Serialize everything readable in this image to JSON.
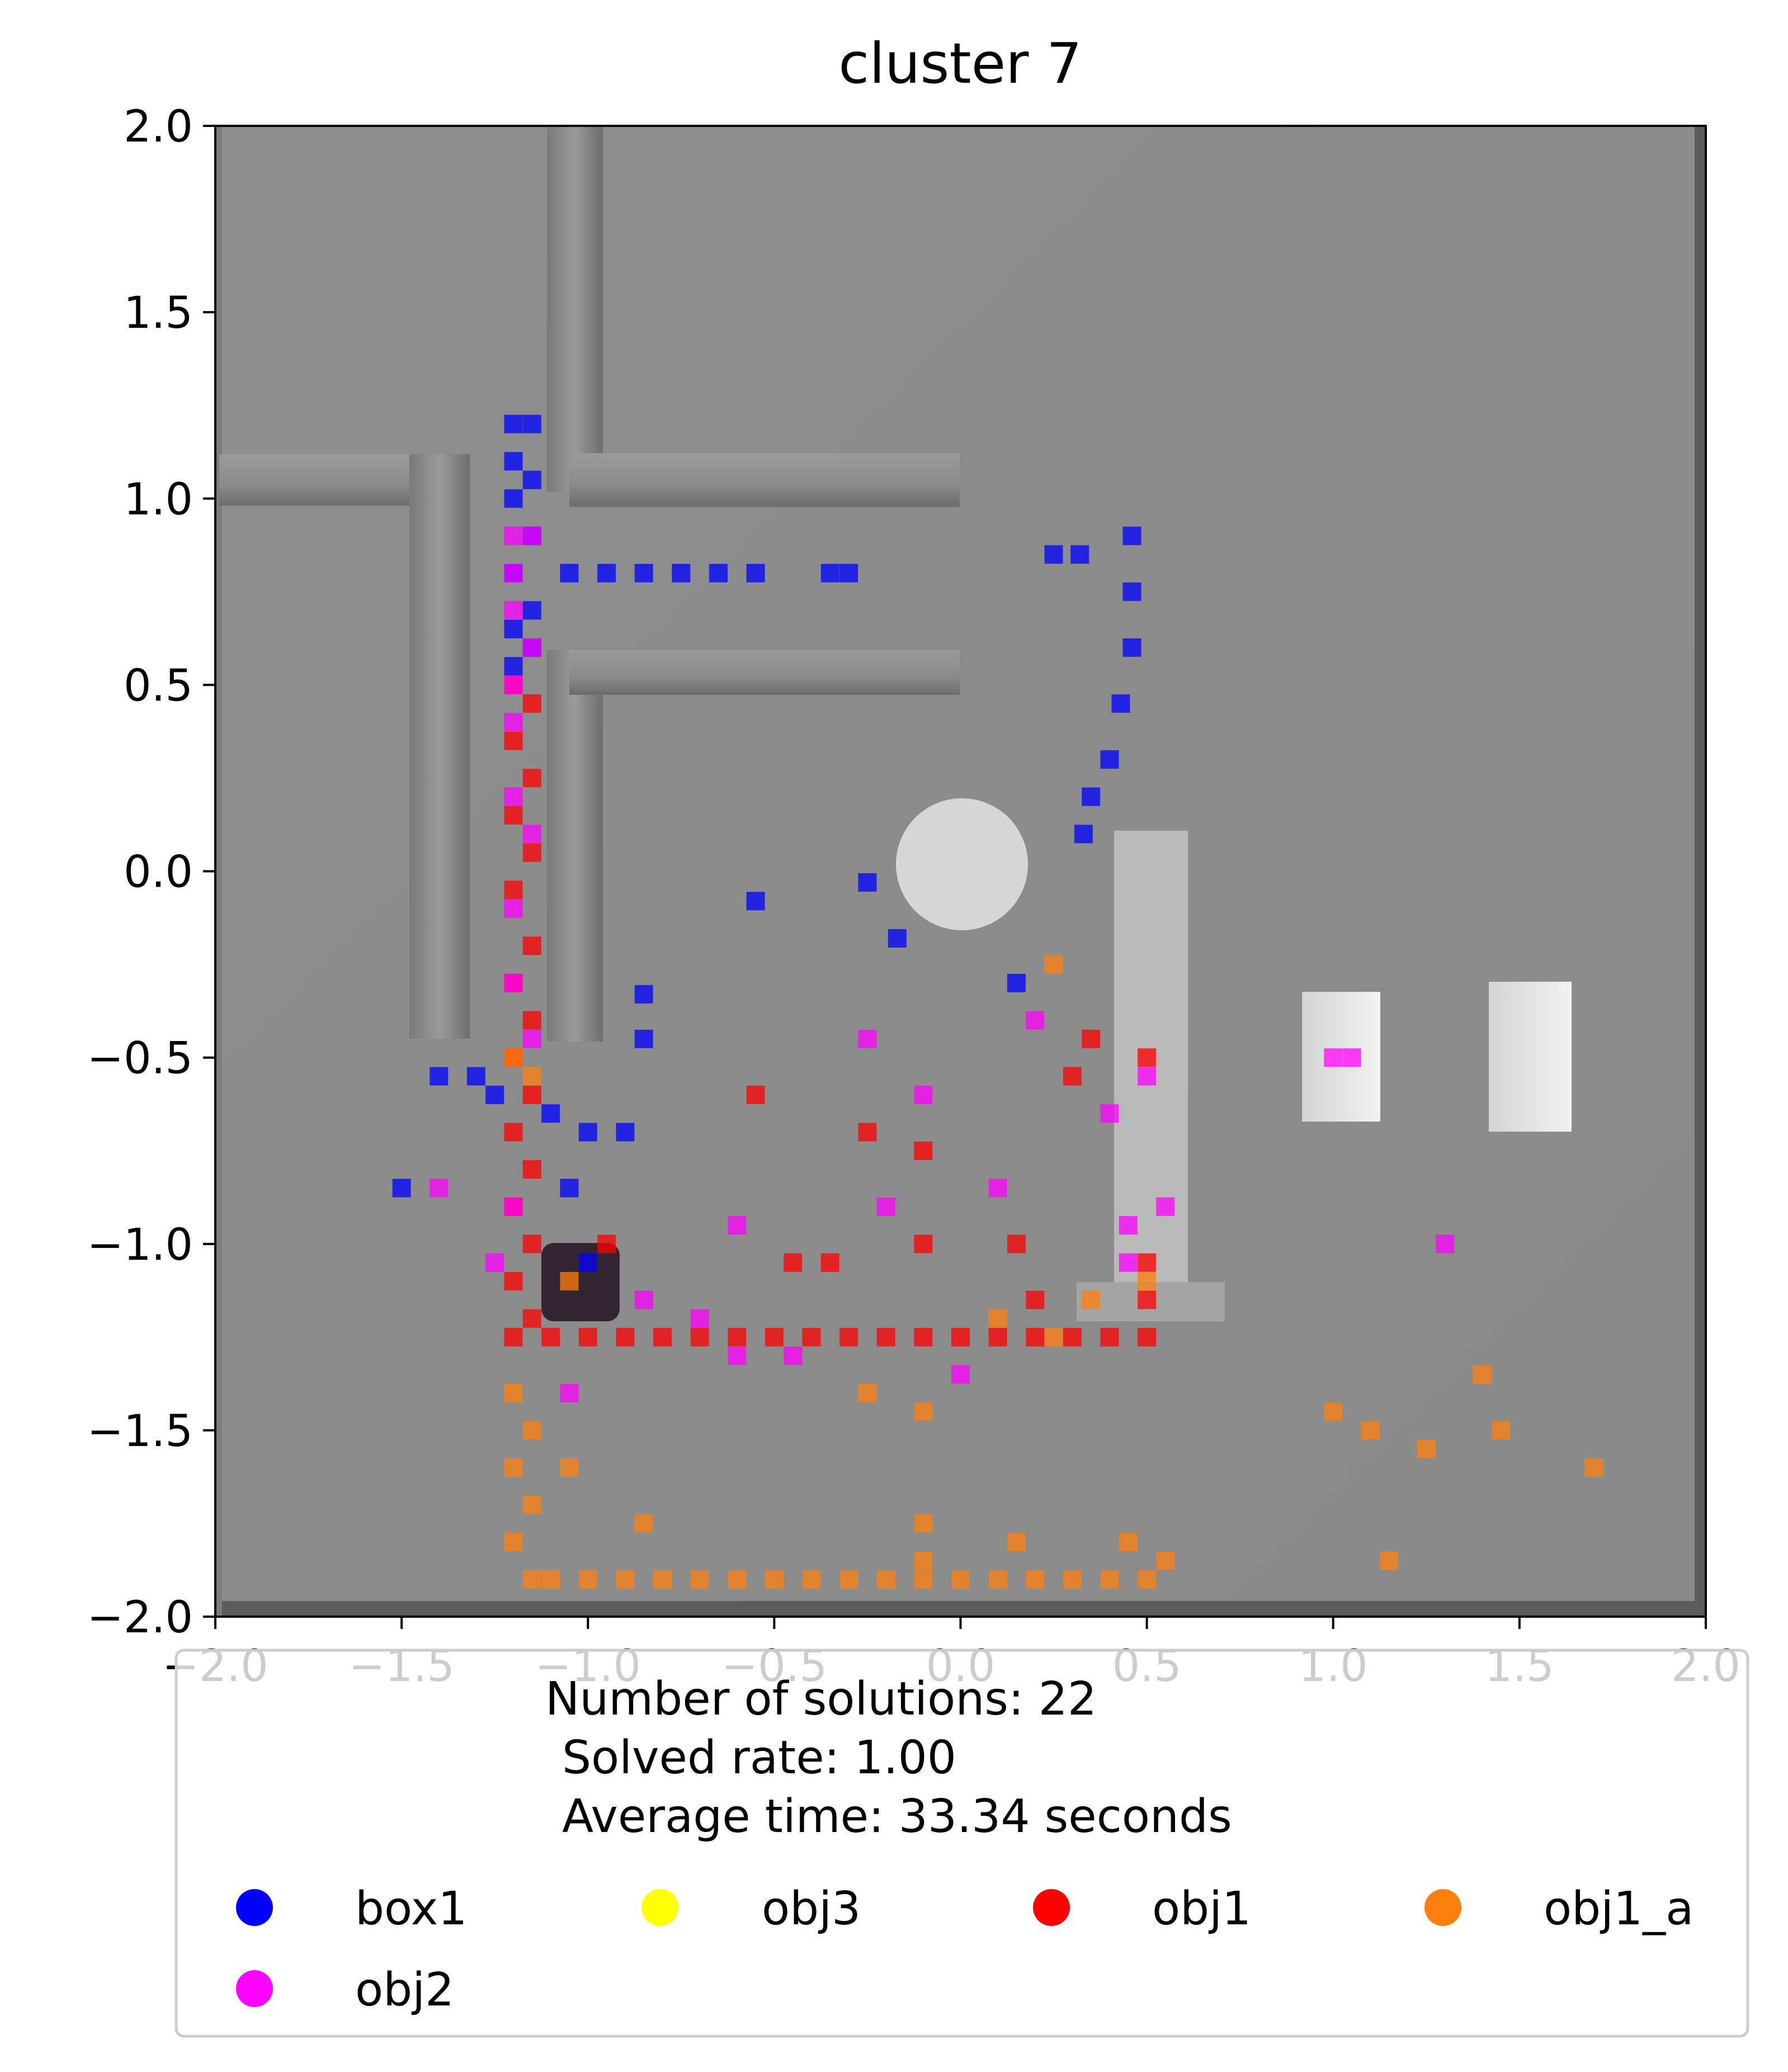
{
  "chart_data": {
    "type": "scatter",
    "title": "cluster 7",
    "xlabel": "",
    "ylabel": "",
    "xlim": [
      -2.0,
      2.0
    ],
    "ylim": [
      -2.0,
      2.0
    ],
    "x_ticks": [
      "−2.0",
      "−1.5",
      "−1.0",
      "−0.5",
      "0.0",
      "0.5",
      "1.0",
      "1.5",
      "2.0"
    ],
    "x_tick_values": [
      -2.0,
      -1.5,
      -1.0,
      -0.5,
      0.0,
      0.5,
      1.0,
      1.5,
      2.0
    ],
    "y_ticks": [
      "2.0",
      "1.5",
      "1.0",
      "0.5",
      "0.0",
      "−0.5",
      "−1.0",
      "−1.5",
      "−2.0"
    ],
    "y_tick_values": [
      2.0,
      1.5,
      1.0,
      0.5,
      0.0,
      -0.5,
      -1.0,
      -1.5,
      -2.0
    ],
    "grid": false,
    "background": "top-down render of environment with walls and obstacles",
    "legend": {
      "placement": "below",
      "text_lines": [
        "Number of solutions: 22",
        "Solved rate: 1.00",
        "Average time: 33.34 seconds"
      ],
      "entries": [
        {
          "name": "box1",
          "color": "#0000ff"
        },
        {
          "name": "obj3",
          "color": "#ffff00"
        },
        {
          "name": "obj1",
          "color": "#ff0000"
        },
        {
          "name": "obj1_a",
          "color": "#ff7f0e"
        },
        {
          "name": "obj2",
          "color": "#ff00ff"
        }
      ]
    },
    "series": [
      {
        "name": "box1",
        "color": "#0000ff",
        "points": [
          [
            -1.2,
            1.2
          ],
          [
            -1.15,
            1.2
          ],
          [
            -1.2,
            1.1
          ],
          [
            -1.15,
            1.05
          ],
          [
            -1.2,
            1.0
          ],
          [
            -1.15,
            0.9
          ],
          [
            -1.2,
            0.8
          ],
          [
            -1.15,
            0.7
          ],
          [
            -1.2,
            0.65
          ],
          [
            -1.15,
            0.6
          ],
          [
            -1.2,
            0.55
          ],
          [
            -1.05,
            0.8
          ],
          [
            -0.95,
            0.8
          ],
          [
            -0.85,
            0.8
          ],
          [
            -0.75,
            0.8
          ],
          [
            -0.65,
            0.8
          ],
          [
            -0.55,
            0.8
          ],
          [
            -0.35,
            0.8
          ],
          [
            -0.3,
            0.8
          ],
          [
            0.25,
            0.85
          ],
          [
            0.32,
            0.85
          ],
          [
            0.46,
            0.9
          ],
          [
            0.46,
            0.75
          ],
          [
            0.46,
            0.6
          ],
          [
            0.43,
            0.45
          ],
          [
            0.4,
            0.3
          ],
          [
            0.35,
            0.2
          ],
          [
            0.33,
            0.1
          ],
          [
            -0.25,
            -0.03
          ],
          [
            -0.55,
            -0.08
          ],
          [
            -0.17,
            -0.18
          ],
          [
            0.15,
            -0.3
          ],
          [
            -0.85,
            -0.33
          ],
          [
            -0.85,
            -0.45
          ],
          [
            -1.4,
            -0.55
          ],
          [
            -1.3,
            -0.55
          ],
          [
            -1.25,
            -0.6
          ],
          [
            -1.1,
            -0.65
          ],
          [
            -1.0,
            -0.7
          ],
          [
            -0.9,
            -0.7
          ],
          [
            -1.05,
            -0.85
          ],
          [
            -1.0,
            -1.05
          ],
          [
            -1.5,
            -0.85
          ]
        ]
      },
      {
        "name": "obj3",
        "color": "#ffff00",
        "points": []
      },
      {
        "name": "obj1",
        "color": "#ff0000",
        "points": [
          [
            -1.2,
            0.5
          ],
          [
            -1.15,
            0.45
          ],
          [
            -1.2,
            0.35
          ],
          [
            -1.15,
            0.25
          ],
          [
            -1.2,
            0.15
          ],
          [
            -1.15,
            0.05
          ],
          [
            -1.2,
            -0.05
          ],
          [
            -1.15,
            -0.2
          ],
          [
            -1.2,
            -0.3
          ],
          [
            -1.15,
            -0.4
          ],
          [
            -1.2,
            -0.5
          ],
          [
            -1.15,
            -0.6
          ],
          [
            -1.2,
            -0.7
          ],
          [
            -1.15,
            -0.8
          ],
          [
            -1.2,
            -0.9
          ],
          [
            -1.15,
            -1.0
          ],
          [
            -1.2,
            -1.1
          ],
          [
            -1.15,
            -1.2
          ],
          [
            -1.2,
            -1.25
          ],
          [
            -1.1,
            -1.25
          ],
          [
            -1.0,
            -1.25
          ],
          [
            -0.9,
            -1.25
          ],
          [
            -0.8,
            -1.25
          ],
          [
            -0.7,
            -1.25
          ],
          [
            -0.6,
            -1.25
          ],
          [
            -0.5,
            -1.25
          ],
          [
            -0.4,
            -1.25
          ],
          [
            -0.3,
            -1.25
          ],
          [
            -0.2,
            -1.25
          ],
          [
            -0.1,
            -1.25
          ],
          [
            0.0,
            -1.25
          ],
          [
            0.1,
            -1.25
          ],
          [
            0.2,
            -1.25
          ],
          [
            0.3,
            -1.25
          ],
          [
            0.4,
            -1.25
          ],
          [
            0.5,
            -1.25
          ],
          [
            -0.95,
            -1.0
          ],
          [
            -0.55,
            -0.6
          ],
          [
            -0.25,
            -0.7
          ],
          [
            -0.1,
            -0.75
          ],
          [
            0.35,
            -0.45
          ],
          [
            0.5,
            -0.5
          ],
          [
            0.3,
            -0.55
          ],
          [
            -0.45,
            -1.05
          ],
          [
            -0.35,
            -1.05
          ],
          [
            -0.1,
            -1.0
          ],
          [
            0.15,
            -1.0
          ],
          [
            0.2,
            -1.15
          ],
          [
            0.5,
            -1.05
          ],
          [
            0.5,
            -1.15
          ]
        ]
      },
      {
        "name": "obj1_a",
        "color": "#ff7f0e",
        "points": [
          [
            -1.2,
            -0.5
          ],
          [
            -1.15,
            -0.55
          ],
          [
            -1.2,
            -1.4
          ],
          [
            -1.15,
            -1.5
          ],
          [
            -1.2,
            -1.6
          ],
          [
            -1.15,
            -1.7
          ],
          [
            -1.2,
            -1.8
          ],
          [
            -1.15,
            -1.9
          ],
          [
            -1.1,
            -1.9
          ],
          [
            -1.0,
            -1.9
          ],
          [
            -0.9,
            -1.9
          ],
          [
            -0.8,
            -1.9
          ],
          [
            -0.7,
            -1.9
          ],
          [
            -0.6,
            -1.9
          ],
          [
            -0.5,
            -1.9
          ],
          [
            -0.4,
            -1.9
          ],
          [
            -0.3,
            -1.9
          ],
          [
            -0.2,
            -1.9
          ],
          [
            -0.1,
            -1.9
          ],
          [
            0.0,
            -1.9
          ],
          [
            0.1,
            -1.9
          ],
          [
            0.2,
            -1.9
          ],
          [
            0.3,
            -1.9
          ],
          [
            0.4,
            -1.9
          ],
          [
            0.5,
            -1.9
          ],
          [
            -1.05,
            -1.1
          ],
          [
            -1.05,
            -1.6
          ],
          [
            -0.85,
            -1.75
          ],
          [
            -0.25,
            -1.4
          ],
          [
            -0.1,
            -1.45
          ],
          [
            0.25,
            -0.25
          ],
          [
            0.5,
            -1.1
          ],
          [
            0.35,
            -1.15
          ],
          [
            0.1,
            -1.2
          ],
          [
            0.25,
            -1.25
          ],
          [
            -0.1,
            -1.75
          ],
          [
            -0.1,
            -1.85
          ],
          [
            0.15,
            -1.8
          ],
          [
            0.45,
            -1.8
          ],
          [
            0.55,
            -1.85
          ],
          [
            1.0,
            -1.45
          ],
          [
            1.1,
            -1.5
          ],
          [
            1.25,
            -1.55
          ],
          [
            1.4,
            -1.35
          ],
          [
            1.45,
            -1.5
          ],
          [
            1.7,
            -1.6
          ],
          [
            1.15,
            -1.85
          ]
        ]
      },
      {
        "name": "obj2",
        "color": "#ff00ff",
        "points": [
          [
            -1.2,
            0.9
          ],
          [
            -1.15,
            0.9
          ],
          [
            -1.2,
            0.8
          ],
          [
            -1.2,
            0.7
          ],
          [
            -1.15,
            0.6
          ],
          [
            -1.2,
            0.5
          ],
          [
            -1.2,
            0.4
          ],
          [
            -1.2,
            0.2
          ],
          [
            -1.15,
            0.1
          ],
          [
            -1.2,
            -0.1
          ],
          [
            -1.2,
            -0.3
          ],
          [
            -1.15,
            -0.45
          ],
          [
            -1.2,
            -0.9
          ],
          [
            -1.25,
            -1.05
          ],
          [
            -1.05,
            -1.4
          ],
          [
            -0.7,
            -1.2
          ],
          [
            -0.45,
            -1.3
          ],
          [
            -0.6,
            -0.95
          ],
          [
            -0.2,
            -0.9
          ],
          [
            0.1,
            -0.85
          ],
          [
            0.45,
            -0.95
          ],
          [
            0.55,
            -0.9
          ],
          [
            0.45,
            -1.05
          ],
          [
            0.5,
            -0.55
          ],
          [
            1.0,
            -0.5
          ],
          [
            1.05,
            -0.5
          ],
          [
            -0.25,
            -0.45
          ],
          [
            -0.1,
            -0.6
          ],
          [
            0.2,
            -0.4
          ],
          [
            0.4,
            -0.65
          ],
          [
            1.3,
            -1.0
          ],
          [
            -1.4,
            -0.85
          ],
          [
            -0.85,
            -1.15
          ],
          [
            -0.6,
            -1.3
          ],
          [
            0.0,
            -1.35
          ]
        ]
      }
    ]
  }
}
